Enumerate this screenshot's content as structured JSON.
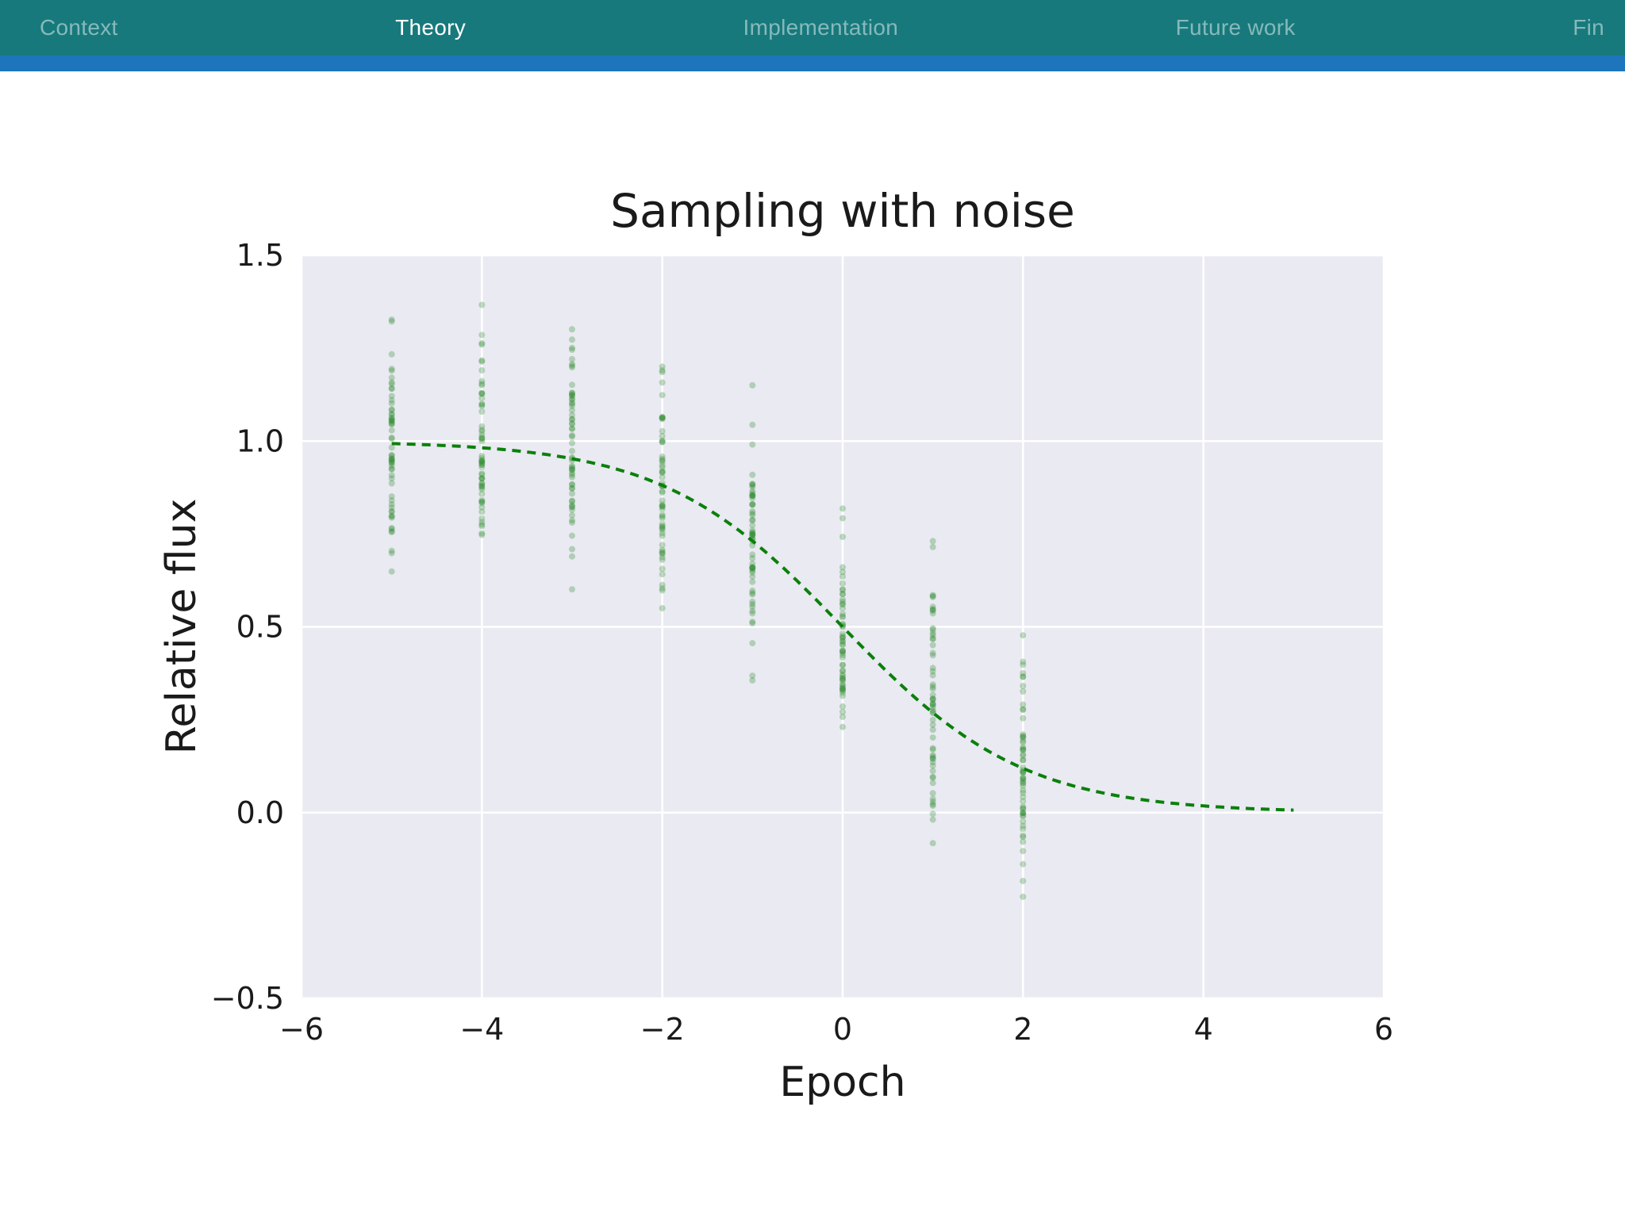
{
  "nav": {
    "bar_color": "#17797c",
    "accent_strip_color": "#1d76bb",
    "items": [
      {
        "label": "Context",
        "active": false
      },
      {
        "label": "Theory",
        "active": true
      },
      {
        "label": "Implementation",
        "active": false
      },
      {
        "label": "Future work",
        "active": false
      },
      {
        "label": "Fin",
        "active": false
      }
    ]
  },
  "chart_data": {
    "type": "scatter",
    "title": "Sampling with noise",
    "xlabel": "Epoch",
    "ylabel": "Relative flux",
    "xlim": [
      -6,
      6
    ],
    "ylim": [
      -0.5,
      1.5
    ],
    "xticks": [
      -6,
      -4,
      -2,
      0,
      2,
      4,
      6
    ],
    "yticks": [
      -0.5,
      0.0,
      0.5,
      1.0,
      1.5
    ],
    "grid": true,
    "legend": "none",
    "plot_bg": "#eaeaf2",
    "grid_color": "#ffffff",
    "text_color": "#1a1a1a",
    "scatter": {
      "description": "vertical clusters of noisy flux samples at integer epochs",
      "color": "#2e8b2e",
      "opacity": 0.3,
      "marker_radius": 4,
      "noise_sd": 0.16,
      "seed": 42,
      "clusters": [
        {
          "x": -5,
          "n": 60,
          "mean": 0.993,
          "sd": 0.16,
          "y_min": 0.6,
          "y_max": 1.37
        },
        {
          "x": -4,
          "n": 60,
          "mean": 0.982,
          "sd": 0.16,
          "y_min": 0.55,
          "y_max": 1.49
        },
        {
          "x": -3,
          "n": 60,
          "mean": 0.953,
          "sd": 0.16,
          "y_min": 0.52,
          "y_max": 1.44
        },
        {
          "x": -2,
          "n": 60,
          "mean": 0.881,
          "sd": 0.16,
          "y_min": 0.41,
          "y_max": 1.3
        },
        {
          "x": -1,
          "n": 60,
          "mean": 0.731,
          "sd": 0.16,
          "y_min": 0.35,
          "y_max": 1.16
        },
        {
          "x": 0,
          "n": 60,
          "mean": 0.5,
          "sd": 0.16,
          "y_min": 0.14,
          "y_max": 0.88
        },
        {
          "x": 1,
          "n": 60,
          "mean": 0.269,
          "sd": 0.16,
          "y_min": -0.17,
          "y_max": 0.74
        },
        {
          "x": 2,
          "n": 60,
          "mean": 0.119,
          "sd": 0.16,
          "y_min": -0.29,
          "y_max": 0.56
        }
      ]
    },
    "model_curve": {
      "name": "logistic model",
      "formula": "y = amplitude / (1 + exp(k * (x - x0)))",
      "amplitude": 1.0,
      "k": 1.0,
      "x0": 0.0,
      "x_start": -5,
      "x_end": 5,
      "color": "#0b800b",
      "style": "dashed",
      "width": 4,
      "dash": [
        11,
        8
      ]
    }
  }
}
